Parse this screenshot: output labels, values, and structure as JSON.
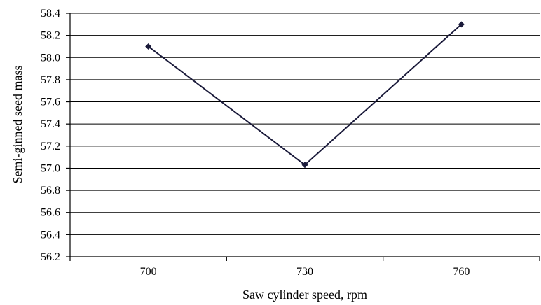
{
  "chart_data": {
    "type": "line",
    "title": "",
    "xlabel": "Saw cylinder speed, rpm",
    "ylabel": "Semi-ginned seed mass",
    "categories": [
      "700",
      "730",
      "760"
    ],
    "series": [
      {
        "values": [
          58.1,
          57.03,
          58.3
        ],
        "color": "#1a1a3a",
        "marker": "diamond"
      }
    ],
    "ylim": [
      56.2,
      58.4
    ],
    "yticks": [
      "56.2",
      "56.4",
      "56.6",
      "56.8",
      "57.0",
      "57.2",
      "57.4",
      "57.6",
      "57.8",
      "58.0",
      "58.2",
      "58.4"
    ],
    "grid": "horizontal",
    "legend": "none"
  }
}
